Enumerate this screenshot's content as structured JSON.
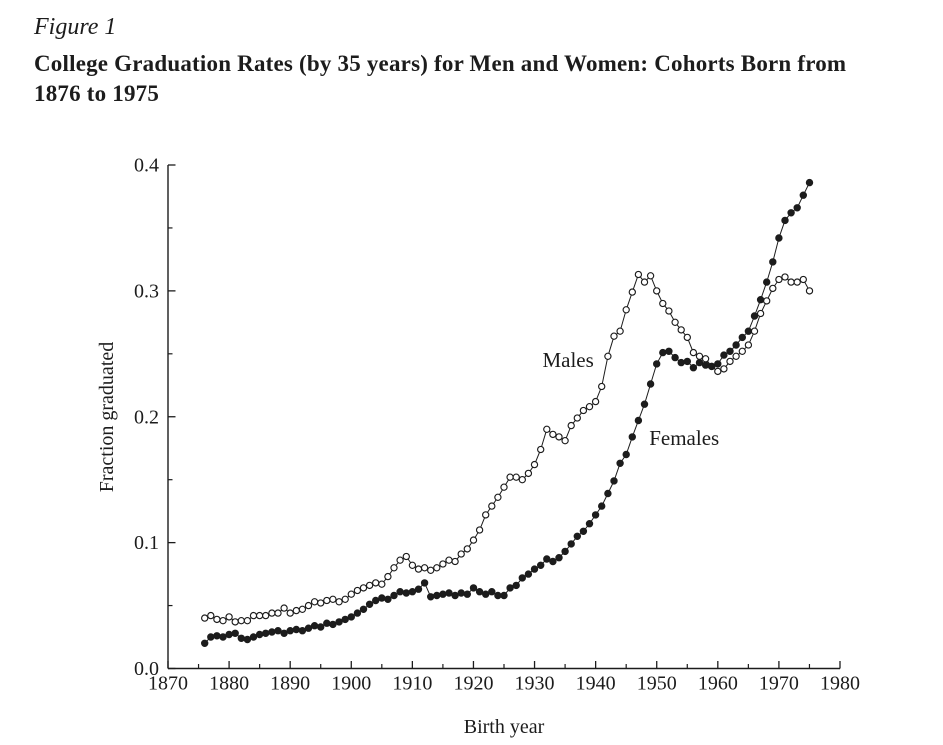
{
  "figure": {
    "label": "Figure 1",
    "title_line1": "College Graduation Rates (by 35 years) for Men and Women: Cohorts Born from",
    "title_line2": "1876 to 1975"
  },
  "colors": {
    "ink": "#1c1c1c",
    "background": "#ffffff"
  },
  "chart_data": {
    "type": "line",
    "title": "College Graduation Rates (by 35 years) for Men and Women: Cohorts Born from 1876 to 1975",
    "xlabel": "Birth year",
    "ylabel": "Fraction graduated",
    "xlim": [
      1870,
      1980
    ],
    "ylim": [
      0.0,
      0.4
    ],
    "grid": false,
    "legend_position": "inline-annotations",
    "x_major_tick_values": [
      1870,
      1880,
      1890,
      1900,
      1910,
      1920,
      1930,
      1940,
      1950,
      1960,
      1970,
      1980
    ],
    "x_major_tick_labels": [
      "1870",
      "1880",
      "1890",
      "1900",
      "1910",
      "1920",
      "1930",
      "1940",
      "1950",
      "1960",
      "1970",
      "1980"
    ],
    "x_minor_tick_values": [
      1875,
      1885,
      1895,
      1905,
      1915,
      1925,
      1935,
      1945,
      1955,
      1965,
      1975
    ],
    "y_major_tick_values": [
      0.0,
      0.1,
      0.2,
      0.3,
      0.4
    ],
    "y_major_tick_labels": [
      "0.0",
      "0.1",
      "0.2",
      "0.3",
      "0.4"
    ],
    "y_minor_tick_values": [
      0.05,
      0.15,
      0.25,
      0.35
    ],
    "x": [
      1876,
      1877,
      1878,
      1879,
      1880,
      1881,
      1882,
      1883,
      1884,
      1885,
      1886,
      1887,
      1888,
      1889,
      1890,
      1891,
      1892,
      1893,
      1894,
      1895,
      1896,
      1897,
      1898,
      1899,
      1900,
      1901,
      1902,
      1903,
      1904,
      1905,
      1906,
      1907,
      1908,
      1909,
      1910,
      1911,
      1912,
      1913,
      1914,
      1915,
      1916,
      1917,
      1918,
      1919,
      1920,
      1921,
      1922,
      1923,
      1924,
      1925,
      1926,
      1927,
      1928,
      1929,
      1930,
      1931,
      1932,
      1933,
      1934,
      1935,
      1936,
      1937,
      1938,
      1939,
      1940,
      1941,
      1942,
      1943,
      1944,
      1945,
      1946,
      1947,
      1948,
      1949,
      1950,
      1951,
      1952,
      1953,
      1954,
      1955,
      1956,
      1957,
      1958,
      1959,
      1960,
      1961,
      1962,
      1963,
      1964,
      1965,
      1966,
      1967,
      1968,
      1969,
      1970,
      1971,
      1972,
      1973,
      1974,
      1975
    ],
    "series": [
      {
        "name": "Males",
        "marker": "open-circle",
        "values": [
          0.04,
          0.042,
          0.039,
          0.038,
          0.041,
          0.037,
          0.038,
          0.038,
          0.042,
          0.042,
          0.042,
          0.044,
          0.044,
          0.048,
          0.044,
          0.046,
          0.047,
          0.05,
          0.053,
          0.052,
          0.054,
          0.055,
          0.053,
          0.055,
          0.059,
          0.062,
          0.064,
          0.066,
          0.068,
          0.067,
          0.073,
          0.08,
          0.086,
          0.089,
          0.082,
          0.079,
          0.08,
          0.078,
          0.08,
          0.083,
          0.086,
          0.085,
          0.091,
          0.095,
          0.102,
          0.11,
          0.122,
          0.129,
          0.136,
          0.144,
          0.152,
          0.152,
          0.15,
          0.155,
          0.162,
          0.174,
          0.19,
          0.186,
          0.184,
          0.181,
          0.193,
          0.199,
          0.205,
          0.208,
          0.212,
          0.224,
          0.248,
          0.264,
          0.268,
          0.285,
          0.299,
          0.313,
          0.307,
          0.312,
          0.3,
          0.29,
          0.284,
          0.275,
          0.269,
          0.263,
          0.251,
          0.248,
          0.246,
          0.24,
          0.236,
          0.238,
          0.244,
          0.248,
          0.252,
          0.257,
          0.268,
          0.282,
          0.292,
          0.302,
          0.309,
          0.311,
          0.307,
          0.307,
          0.309,
          0.3
        ]
      },
      {
        "name": "Females",
        "marker": "filled-circle",
        "values": [
          0.02,
          0.025,
          0.026,
          0.025,
          0.027,
          0.028,
          0.024,
          0.023,
          0.025,
          0.027,
          0.028,
          0.029,
          0.03,
          0.028,
          0.03,
          0.031,
          0.03,
          0.032,
          0.034,
          0.033,
          0.036,
          0.035,
          0.037,
          0.039,
          0.041,
          0.044,
          0.047,
          0.051,
          0.054,
          0.056,
          0.055,
          0.058,
          0.061,
          0.06,
          0.061,
          0.063,
          0.068,
          0.057,
          0.058,
          0.059,
          0.06,
          0.058,
          0.06,
          0.059,
          0.064,
          0.061,
          0.059,
          0.061,
          0.058,
          0.058,
          0.064,
          0.066,
          0.072,
          0.075,
          0.079,
          0.082,
          0.087,
          0.085,
          0.088,
          0.093,
          0.099,
          0.105,
          0.109,
          0.115,
          0.122,
          0.129,
          0.139,
          0.149,
          0.163,
          0.17,
          0.184,
          0.197,
          0.21,
          0.226,
          0.242,
          0.251,
          0.252,
          0.247,
          0.243,
          0.244,
          0.239,
          0.243,
          0.241,
          0.24,
          0.242,
          0.249,
          0.252,
          0.257,
          0.263,
          0.268,
          0.28,
          0.293,
          0.307,
          0.323,
          0.342,
          0.356,
          0.362,
          0.366,
          0.376,
          0.386
        ]
      }
    ],
    "annotations": [
      {
        "text": "Males",
        "x": 1935.5,
        "y": 0.2395
      },
      {
        "text": "Females",
        "x": 1954.5,
        "y": 0.1776
      }
    ]
  }
}
